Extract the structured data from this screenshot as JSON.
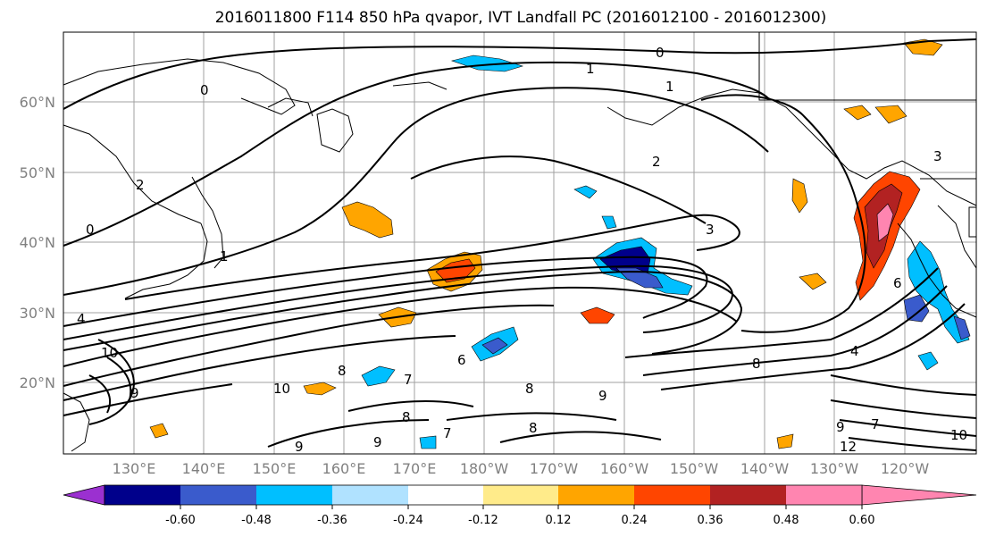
{
  "title": "2016011800 F114 850 hPa qvapor, IVT Landfall PC (2016012100 - 2016012300)",
  "map": {
    "lat_labels": [
      "20°N",
      "30°N",
      "40°N",
      "50°N",
      "60°N"
    ],
    "lon_labels": [
      "130°E",
      "140°E",
      "150°E",
      "160°E",
      "170°E",
      "180°W",
      "170°W",
      "160°W",
      "150°W",
      "140°W",
      "130°W",
      "120°W"
    ],
    "contour_labels": [
      "0",
      "1",
      "0",
      "1",
      "2",
      "0",
      "1",
      "3",
      "2",
      "3",
      "4",
      "10",
      "9",
      "8",
      "7",
      "10",
      "6",
      "8",
      "9",
      "8",
      "7",
      "9",
      "6",
      "8",
      "8",
      "4",
      "9",
      "7",
      "9",
      "12",
      "10"
    ],
    "gridlines": true
  },
  "colorbar": {
    "colors": [
      "#9b30d0",
      "#00008b",
      "#3a5bcc",
      "#00bfff",
      "#b0e2ff",
      "#ffffff",
      "#ffeb8a",
      "#ffa500",
      "#ff4500",
      "#b22222",
      "#ff85b0"
    ],
    "tick_labels": [
      "-0.60",
      "-0.48",
      "-0.36",
      "-0.24",
      "-0.12",
      "0.12",
      "0.24",
      "0.36",
      "0.48",
      "0.60"
    ]
  }
}
